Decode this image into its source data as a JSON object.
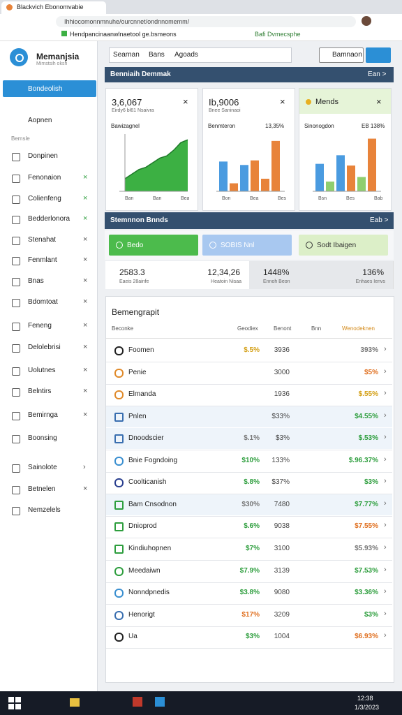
{
  "browser": {
    "tab_title": "Blackvich Ebonomvabie",
    "url": "Ihhiocomonnmnuhe/ourcnnet/ondnnomemm/",
    "bookmarks": [
      "Hendpancinaanwlnaetool ge.bsmeons",
      "Bafi Dvmecsphe"
    ]
  },
  "sidebar": {
    "brand": "Memanjsia",
    "brand_sub": "Mimstsih oksh",
    "active": "Bondeolish",
    "group": "Aopnen",
    "section": "Bemsle",
    "items": [
      {
        "label": "Donpinen",
        "trail": ""
      },
      {
        "label": "Fenonaion",
        "trail": "×",
        "accent": true
      },
      {
        "label": "Colienfeng",
        "trail": "×",
        "accent": true
      },
      {
        "label": "Bedderlonora",
        "trail": "×",
        "accent": true
      },
      {
        "label": "Stenahat",
        "trail": "×"
      },
      {
        "label": "Fenmlant",
        "trail": "×"
      },
      {
        "label": "Bnas",
        "trail": "×"
      },
      {
        "label": "Bdomtoat",
        "trail": "×"
      },
      {
        "label": "Feneng",
        "trail": "×"
      },
      {
        "label": "Delolebrisi",
        "trail": "×"
      },
      {
        "label": "Uolutnes",
        "trail": "×"
      },
      {
        "label": "Belntirs",
        "trail": "×"
      },
      {
        "label": "Bemirnga",
        "trail": "×"
      },
      {
        "label": "Boonsing",
        "trail": ""
      },
      {
        "label": "Sainolote",
        "trail": "›"
      },
      {
        "label": "Betnelen",
        "trail": "×"
      },
      {
        "label": "Nemzelels",
        "trail": ""
      }
    ]
  },
  "toolbar": {
    "tabs": [
      "Searnan",
      "Bans",
      "Agoads"
    ],
    "button": "Bamnaon"
  },
  "section1": {
    "title": "Benniaih Demmak",
    "action": "Ean >"
  },
  "cards": [
    {
      "value": "3,6,067",
      "caption": "Eirdy6 bl61 Nsaivra",
      "label": "Bawizagnel",
      "metric": "",
      "chart": "area",
      "ylim": [
        0,
        100
      ],
      "values": [
        22,
        30,
        38,
        42,
        50,
        58,
        62,
        72,
        85,
        90
      ],
      "color": "#3cb043",
      "axis": [
        "Ban",
        "Ban",
        "Bea"
      ]
    },
    {
      "value": "Ib,9006",
      "caption": "Bnee Saninaoi",
      "label": "Benmteron",
      "metric": "13,35%",
      "chart": "bar",
      "ylim": [
        0,
        100
      ],
      "values": [
        52,
        14,
        46,
        54,
        22,
        88
      ],
      "colors": [
        "#4a9be0",
        "#e8833a",
        "#4a9be0",
        "#e8833a",
        "#e8833a",
        "#e8833a"
      ],
      "axis": [
        "Bon",
        "Bea",
        "Bes"
      ]
    },
    {
      "value": "Mends",
      "caption": "",
      "label": "Sinonogdon",
      "metric": "EB 138%",
      "chart": "bar",
      "ylim": [
        0,
        100
      ],
      "values": [
        48,
        17,
        63,
        45,
        25,
        92
      ],
      "colors": [
        "#4a9be0",
        "#8fce6f",
        "#4a9be0",
        "#e8833a",
        "#8fce6f",
        "#e8833a"
      ],
      "axis": [
        "Bsn",
        "Bes",
        "Bab"
      ]
    }
  ],
  "section2": {
    "title": "Stemnnon Bnnds",
    "action": "Eab >"
  },
  "actions": [
    "Bedo",
    "SOBIS Nnl",
    "Sodt Ibaigen"
  ],
  "stats": [
    {
      "value": "2583.3",
      "label": "Eaeis 28ainfe"
    },
    {
      "value": "12,34,26",
      "label": "Heatoin Nisaa"
    },
    {
      "value": "1448%",
      "label": "Ennoh Beon"
    },
    {
      "value": "136%",
      "label": "Enhaes Ienvs"
    }
  ],
  "table": {
    "title": "Bemengrapit",
    "columns": [
      "Beconke",
      "Geodiex",
      "Benont",
      "Bnn",
      "Wenodeknen"
    ],
    "rows": [
      {
        "name": "Foomen",
        "a": "$.5%",
        "b": "3936",
        "s": "393%",
        "a_color": "#d4a017",
        "s_color": "#777",
        "icon": "#222",
        "square": false,
        "hl": false
      },
      {
        "name": "Penie",
        "a": "",
        "b": "3000",
        "s": "$5%",
        "a_color": "#777",
        "s_color": "#e07020",
        "icon": "#e08a2a",
        "square": false,
        "hl": false
      },
      {
        "name": "Elmanda",
        "a": "",
        "b": "1936",
        "s": "$.55%",
        "a_color": "#777",
        "s_color": "#d4a017",
        "icon": "#e08a2a",
        "square": false,
        "hl": false
      },
      {
        "name": "Pnlen",
        "a": "",
        "b": "$33%",
        "s": "$4.55%",
        "a_color": "#777",
        "s_color": "#2e9e3e",
        "icon": "#3a6fb0",
        "square": true,
        "hl": true
      },
      {
        "name": "Dnoodscier",
        "a": "$.1%",
        "b": "$3%",
        "s": "$.53%",
        "a_color": "#777",
        "s_color": "#2e9e3e",
        "icon": "#3a6fb0",
        "square": true,
        "hl": true
      },
      {
        "name": "Bnie Fogndoing",
        "a": "$10%",
        "b": "133%",
        "s": "$.96.37%",
        "a_color": "#2e9e3e",
        "s_color": "#2e9e3e",
        "icon": "#3a8fd0",
        "square": false,
        "hl": false
      },
      {
        "name": "Coolticanish",
        "a": "$.8%",
        "b": "$37%",
        "s": "$3%",
        "a_color": "#2e9e3e",
        "s_color": "#2e9e3e",
        "icon": "#2a3f8f",
        "square": false,
        "hl": false
      },
      {
        "name": "Bam Cnsodnon",
        "a": "$30%",
        "b": "7480",
        "s": "$7.77%",
        "a_color": "#777",
        "s_color": "#2e9e3e",
        "icon": "#2e9e3e",
        "square": true,
        "hl": true
      },
      {
        "name": "Dnioprod",
        "a": "$.6%",
        "b": "9038",
        "s": "$7.55%",
        "a_color": "#2e9e3e",
        "s_color": "#e07020",
        "icon": "#2e9e3e",
        "square": true,
        "hl": false
      },
      {
        "name": "Kindiuhopnen",
        "a": "$7%",
        "b": "3100",
        "s": "$5.93%",
        "a_color": "#2e9e3e",
        "s_color": "#777",
        "icon": "#2e9e3e",
        "square": true,
        "hl": false
      },
      {
        "name": "Meedaiwn",
        "a": "$7.9%",
        "b": "3139",
        "s": "$7.53%",
        "a_color": "#2e9e3e",
        "s_color": "#2e9e3e",
        "icon": "#2e9e3e",
        "square": false,
        "hl": false
      },
      {
        "name": "Nonndpnedis",
        "a": "$3.8%",
        "b": "9080",
        "s": "$3.36%",
        "a_color": "#2e9e3e",
        "s_color": "#2e9e3e",
        "icon": "#3a8fd0",
        "square": false,
        "hl": false
      },
      {
        "name": "Henorigt",
        "a": "$17%",
        "b": "3209",
        "s": "$3%",
        "a_color": "#e07020",
        "s_color": "#2e9e3e",
        "icon": "#3a6fb0",
        "square": false,
        "hl": false
      },
      {
        "name": "Ua",
        "a": "$3%",
        "b": "1004",
        "s": "$6.93%",
        "a_color": "#2e9e3e",
        "s_color": "#e07020",
        "icon": "#222",
        "square": false,
        "hl": false
      }
    ]
  },
  "taskbar": {
    "clock": [
      "12:38",
      "1/3/2023"
    ]
  }
}
